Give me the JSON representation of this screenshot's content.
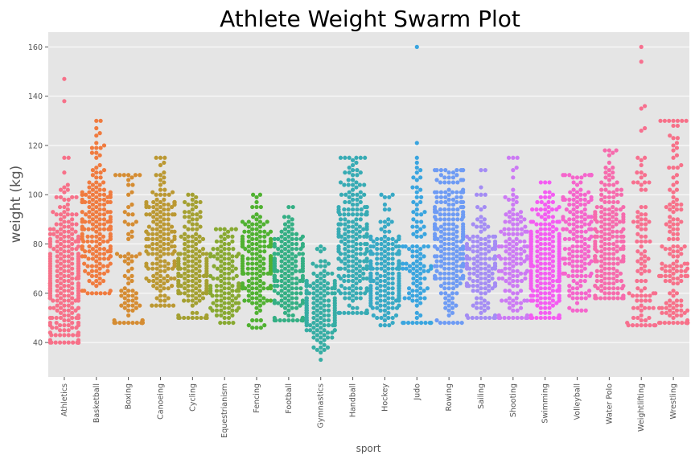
{
  "chart_data": {
    "type": "swarm",
    "title": "Athlete Weight Swarm Plot",
    "xlabel": "sport",
    "ylabel": "weight (kg)",
    "ylim": [
      26,
      166
    ],
    "yticks": [
      40,
      60,
      80,
      100,
      120,
      140,
      160
    ],
    "grid": true,
    "legend": "none",
    "categories": [
      "Athletics",
      "Basketball",
      "Boxing",
      "Canoeing",
      "Cycling",
      "Equestrianism",
      "Fencing",
      "Football",
      "Gymnastics",
      "Handball",
      "Hockey",
      "Judo",
      "Rowing",
      "Sailing",
      "Shooting",
      "Swimming",
      "Volleyball",
      "Water Polo",
      "Weightlifting",
      "Wrestling"
    ],
    "colors": [
      "#f77189",
      "#f07b3f",
      "#d58c32",
      "#bb9832",
      "#a4a031",
      "#88a931",
      "#50b131",
      "#34af84",
      "#36ada4",
      "#37abb4",
      "#38a9c5",
      "#3aa5df",
      "#6e9bf4",
      "#a48cf4",
      "#cc7af4",
      "#f45cf2",
      "#f565cc",
      "#f66bad",
      "#f7708f",
      "#f77189"
    ],
    "stats": [
      {
        "sport": "Athletics",
        "n": 300,
        "q1": 55,
        "median": 66,
        "q3": 77,
        "min": 40,
        "max": 147
      },
      {
        "sport": "Basketball",
        "n": 200,
        "q1": 74,
        "median": 84,
        "q3": 95,
        "min": 60,
        "max": 130
      },
      {
        "sport": "Boxing",
        "n": 85,
        "q1": 51,
        "median": 62,
        "q3": 81,
        "min": 48,
        "max": 108
      },
      {
        "sport": "Canoeing",
        "n": 175,
        "q1": 71,
        "median": 82,
        "q3": 91,
        "min": 55,
        "max": 115
      },
      {
        "sport": "Cycling",
        "n": 190,
        "q1": 59,
        "median": 68,
        "q3": 78,
        "min": 50,
        "max": 100
      },
      {
        "sport": "Equestrianism",
        "n": 125,
        "q1": 58,
        "median": 64,
        "q3": 72,
        "min": 48,
        "max": 86
      },
      {
        "sport": "Fencing",
        "n": 185,
        "q1": 63,
        "median": 72,
        "q3": 79,
        "min": 46,
        "max": 100
      },
      {
        "sport": "Football",
        "n": 205,
        "q1": 60,
        "median": 69,
        "q3": 75,
        "min": 49,
        "max": 95
      },
      {
        "sport": "Gymnastics",
        "n": 170,
        "q1": 49,
        "median": 55,
        "q3": 61,
        "min": 33,
        "max": 79
      },
      {
        "sport": "Handball",
        "n": 230,
        "q1": 68,
        "median": 80,
        "q3": 95,
        "min": 52,
        "max": 115
      },
      {
        "sport": "Hockey",
        "n": 210,
        "q1": 61,
        "median": 69,
        "q3": 77,
        "min": 47,
        "max": 100
      },
      {
        "sport": "Judo",
        "n": 110,
        "q1": 60,
        "median": 72,
        "q3": 90,
        "min": 48,
        "max": 160
      },
      {
        "sport": "Rowing",
        "n": 240,
        "q1": 72,
        "median": 82,
        "q3": 92,
        "min": 48,
        "max": 110
      },
      {
        "sport": "Sailing",
        "n": 150,
        "q1": 62,
        "median": 70,
        "q3": 77,
        "min": 50,
        "max": 110
      },
      {
        "sport": "Shooting",
        "n": 150,
        "q1": 62,
        "median": 73,
        "q3": 83,
        "min": 50,
        "max": 115
      },
      {
        "sport": "Swimming",
        "n": 260,
        "q1": 64,
        "median": 74,
        "q3": 83,
        "min": 50,
        "max": 105
      },
      {
        "sport": "Volleyball",
        "n": 165,
        "q1": 70,
        "median": 80,
        "q3": 90,
        "min": 53,
        "max": 108
      },
      {
        "sport": "Water Polo",
        "n": 210,
        "q1": 72,
        "median": 84,
        "q3": 94,
        "min": 58,
        "max": 118
      },
      {
        "sport": "Weightlifting",
        "n": 100,
        "q1": 58,
        "median": 70,
        "q3": 88,
        "min": 47,
        "max": 160
      },
      {
        "sport": "Wrestling",
        "n": 155,
        "q1": 59,
        "median": 74,
        "q3": 96,
        "min": 48,
        "max": 130
      }
    ]
  }
}
